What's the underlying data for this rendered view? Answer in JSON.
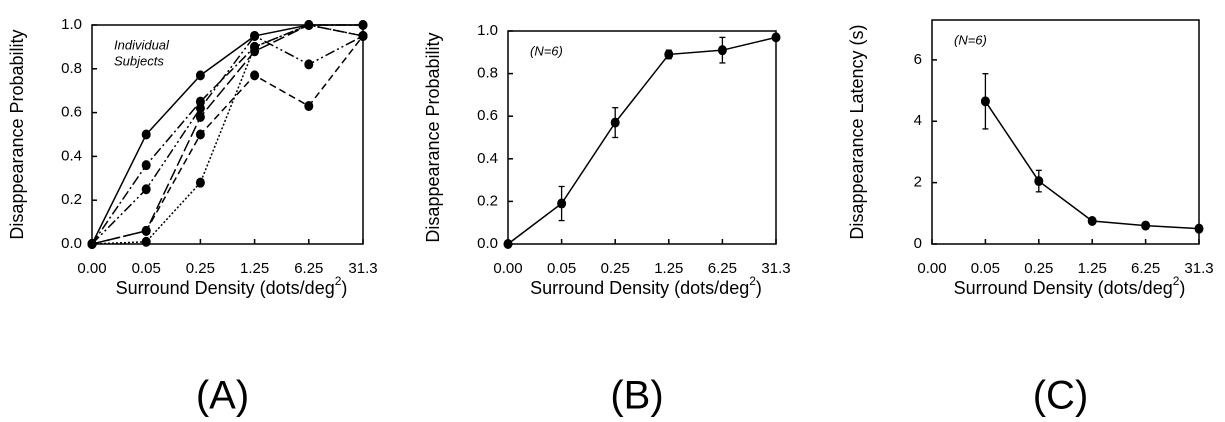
{
  "chart_data": [
    {
      "type": "line",
      "panel_label": "(A)",
      "ylabel": "Disappearance Probability",
      "xlabel": {
        "text": "Surround Density (dots/deg",
        "sup": "2",
        "tail": ")"
      },
      "annotation": [
        "Individual",
        "Subjects"
      ],
      "categories": [
        "0.00",
        "0.05",
        "0.25",
        "1.25",
        "6.25",
        "31.3"
      ],
      "ylim": [
        0,
        1
      ],
      "yticks": [
        {
          "value": 0,
          "label": "0.0"
        },
        0.2,
        0.4,
        0.6,
        0.8,
        {
          "value": 1,
          "label": "1.0"
        }
      ],
      "series": [
        {
          "color": "#000",
          "dash": "solid",
          "values": [
            0,
            0.5,
            0.77,
            0.95,
            1.0,
            1.0
          ]
        },
        {
          "color": "#000",
          "dash": "dashdot",
          "values": [
            0,
            0.36,
            0.65,
            0.9,
            1.0,
            1.0
          ]
        },
        {
          "color": "#000",
          "dash": "dashdotdot",
          "values": [
            0,
            0.25,
            0.62,
            0.95,
            0.82,
            0.95
          ]
        },
        {
          "color": "#000",
          "dash": "dashed",
          "values": [
            0,
            0.06,
            0.5,
            0.77,
            0.63,
            0.95
          ]
        },
        {
          "color": "#000",
          "dash": "longdash",
          "values": [
            0,
            0.06,
            0.58,
            0.88,
            1.0,
            0.95
          ]
        },
        {
          "color": "#000",
          "dash": "dotted",
          "values": [
            0,
            0.01,
            0.28,
            0.9,
            1.0,
            0.95
          ]
        }
      ]
    },
    {
      "type": "line",
      "panel_label": "(B)",
      "ylabel": "Disappearance Probability",
      "xlabel": {
        "text": "Surround Density (dots/deg",
        "sup": "2",
        "tail": ")"
      },
      "annotation": [
        "(N=6)"
      ],
      "categories": [
        "0.00",
        "0.05",
        "0.25",
        "1.25",
        "6.25",
        "31.3"
      ],
      "ylim": [
        0,
        1
      ],
      "yticks": [
        {
          "value": 0,
          "label": "0.0"
        },
        0.2,
        0.4,
        0.6,
        0.8,
        {
          "value": 1,
          "label": "1.0"
        }
      ],
      "series": [
        {
          "color": "#000",
          "dash": "solid",
          "values": [
            0,
            0.19,
            0.57,
            0.89,
            0.91,
            0.97
          ],
          "errors": [
            0,
            0.08,
            0.07,
            0.02,
            0.06,
            0.01
          ]
        }
      ]
    },
    {
      "type": "line",
      "panel_label": "(C)",
      "ylabel": "Disappearance Latency (s)",
      "xlabel": {
        "text": "Surround Density (dots/deg",
        "sup": "2",
        "tail": ")"
      },
      "annotation": [
        "(N=6)"
      ],
      "categories": [
        "0.00",
        "0.05",
        "0.25",
        "1.25",
        "6.25",
        "31.3"
      ],
      "ylim": [
        0,
        7.3
      ],
      "yticks": [
        0,
        2,
        4,
        6
      ],
      "series": [
        {
          "color": "#000",
          "dash": "solid",
          "values": [
            null,
            4.65,
            2.05,
            0.75,
            0.6,
            0.5
          ],
          "errors": [
            null,
            0.9,
            0.35,
            0.05,
            0.1,
            0.05
          ]
        }
      ]
    }
  ]
}
